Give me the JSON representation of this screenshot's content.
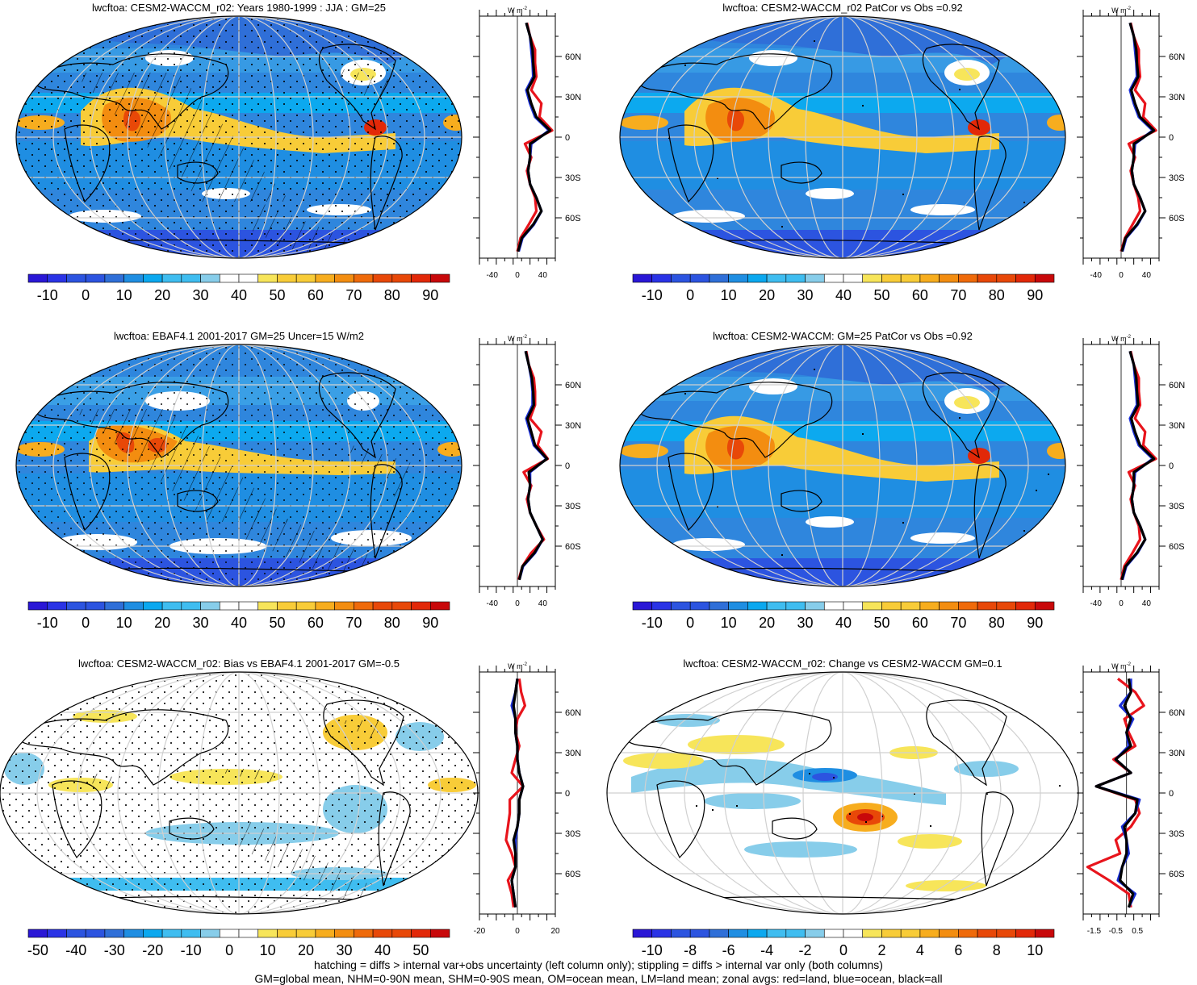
{
  "footer": {
    "line1": "hatching = diffs > internal var+obs uncertainty (left column only); stippling = diffs > internal var only (both columns)",
    "line2": "GM=global mean, NHM=0-90N mean, SHM=0-90S mean, OM=ocean mean, LM=land mean; zonal avgs: red=land, blue=ocean, black=all"
  },
  "colors": {
    "land": "#e8141c",
    "ocean": "#1a2fd6",
    "all": "#000000",
    "levels_abs": [
      "#2a17d6",
      "#2a33e6",
      "#2c54e0",
      "#2f6fd8",
      "#1f8ee2",
      "#0ba8ef",
      "#3fbdf0",
      "#87cdea",
      "#ffffff",
      "#ffffff",
      "#f7e55a",
      "#f8cc38",
      "#f7ad1e",
      "#f38d10",
      "#ef6a0a",
      "#e84808",
      "#e22808",
      "#c8080a"
    ],
    "levels_diff": [
      "#2a17d6",
      "#2a33e6",
      "#2c54e0",
      "#2f6fd8",
      "#1f8ee2",
      "#0ba8ef",
      "#3fbdf0",
      "#87cdea",
      "#ffffff",
      "#ffffff",
      "#f7e55a",
      "#f8cc38",
      "#f7ad1e",
      "#f38d10",
      "#ef6a0a",
      "#e84808",
      "#e22808",
      "#c8080a"
    ]
  },
  "panels": [
    {
      "id": "model_r02",
      "title": "lwcftoa: CESM2-WACCM_r02: Years 1980-1999 : JJA : GM=25",
      "colorbar_labels": [
        "-10",
        "0",
        "10",
        "20",
        "30",
        "40",
        "50",
        "60",
        "70",
        "80",
        "90"
      ],
      "colorbar_label_positions": [
        1,
        3,
        5,
        7,
        9,
        11,
        13,
        15,
        17,
        19,
        21
      ],
      "zonal_unit": "W m",
      "zonal_unit_sup": "-2",
      "zonal_xticks": [
        "-40",
        "0",
        "40"
      ],
      "zonal_yticks": [
        "60N",
        "30N",
        "0",
        "30S",
        "60S"
      ]
    },
    {
      "id": "model_r02_patcor",
      "title": "lwcftoa: CESM2-WACCM_r02 PatCor vs Obs =0.92",
      "colorbar_labels": [
        "-10",
        "0",
        "10",
        "20",
        "30",
        "40",
        "50",
        "60",
        "70",
        "80",
        "90"
      ],
      "colorbar_label_positions": [
        1,
        3,
        5,
        7,
        9,
        11,
        13,
        15,
        17,
        19,
        21
      ],
      "zonal_unit": "W m",
      "zonal_unit_sup": "-2",
      "zonal_xticks": [
        "-40",
        "0",
        "40"
      ],
      "zonal_yticks": [
        "60N",
        "30N",
        "0",
        "30S",
        "60S"
      ]
    },
    {
      "id": "obs_ebaf",
      "title": "lwcftoa: EBAF4.1 2001-2017 GM=25 Uncer=15 W/m2",
      "colorbar_labels": [
        "-10",
        "0",
        "10",
        "20",
        "30",
        "40",
        "50",
        "60",
        "70",
        "80",
        "90"
      ],
      "colorbar_label_positions": [
        1,
        3,
        5,
        7,
        9,
        11,
        13,
        15,
        17,
        19,
        21
      ],
      "zonal_unit": "W m",
      "zonal_unit_sup": "-2",
      "zonal_xticks": [
        "-40",
        "0",
        "40"
      ],
      "zonal_yticks": [
        "60N",
        "30N",
        "0",
        "30S",
        "60S"
      ]
    },
    {
      "id": "model_ref",
      "title": "lwcftoa: CESM2-WACCM: GM=25 PatCor vs Obs =0.92",
      "colorbar_labels": [
        "-10",
        "0",
        "10",
        "20",
        "30",
        "40",
        "50",
        "60",
        "70",
        "80",
        "90"
      ],
      "colorbar_label_positions": [
        1,
        3,
        5,
        7,
        9,
        11,
        13,
        15,
        17,
        19,
        21
      ],
      "zonal_unit": "W m",
      "zonal_unit_sup": "-2",
      "zonal_xticks": [
        "-40",
        "0",
        "40"
      ],
      "zonal_yticks": [
        "60N",
        "30N",
        "0",
        "30S",
        "60S"
      ]
    },
    {
      "id": "bias",
      "title": "lwcftoa: CESM2-WACCM_r02: Bias vs EBAF4.1 2001-2017 GM=-0.5",
      "colorbar_labels": [
        "-50",
        "-40",
        "-30",
        "-20",
        "-10",
        "0",
        "10",
        "20",
        "30",
        "40",
        "50"
      ],
      "colorbar_label_positions": [
        0,
        2,
        4,
        6,
        8,
        10,
        12,
        14,
        16,
        18,
        20
      ],
      "zonal_unit": "W m",
      "zonal_unit_sup": "-2",
      "zonal_xticks": [
        "-20",
        "0",
        "20"
      ],
      "zonal_yticks": [
        "60N",
        "30N",
        "0",
        "30S",
        "60S"
      ]
    },
    {
      "id": "change",
      "title": "lwcftoa: CESM2-WACCM_r02: Change vs CESM2-WACCM GM=0.1",
      "colorbar_labels": [
        "-10",
        "-8",
        "-6",
        "-4",
        "-2",
        "0",
        "2",
        "4",
        "6",
        "8",
        "10"
      ],
      "colorbar_label_positions": [
        1,
        3,
        5,
        7,
        9,
        11,
        13,
        15,
        17,
        19,
        21
      ],
      "zonal_unit": "W m",
      "zonal_unit_sup": "-2",
      "zonal_xticks": [
        "-1.5",
        "-0.5",
        "0.5"
      ],
      "zonal_yticks": [
        "60N",
        "30N",
        "0",
        "30S",
        "60S"
      ]
    }
  ],
  "chart_data": [
    {
      "type": "line",
      "panel": "model_r02",
      "x_label": "W m-2",
      "xlim": [
        -60,
        60
      ],
      "ylim": [
        -90,
        90
      ],
      "lat": [
        -85,
        -75,
        -65,
        -55,
        -45,
        -35,
        -25,
        -15,
        -5,
        5,
        15,
        25,
        35,
        45,
        55,
        65,
        75,
        85
      ],
      "series": [
        {
          "name": "land",
          "values": [
            0,
            5,
            18,
            30,
            28,
            20,
            15,
            22,
            12,
            55,
            35,
            38,
            22,
            30,
            28,
            28,
            20,
            15
          ]
        },
        {
          "name": "ocean",
          "values": [
            2,
            8,
            26,
            38,
            30,
            20,
            17,
            20,
            22,
            50,
            28,
            20,
            14,
            25,
            24,
            22,
            20,
            14
          ]
        },
        {
          "name": "all",
          "values": [
            1,
            7,
            25,
            38,
            30,
            20,
            17,
            20,
            20,
            52,
            30,
            22,
            16,
            27,
            25,
            24,
            20,
            14
          ]
        }
      ]
    },
    {
      "type": "line",
      "panel": "model_r02_patcor",
      "x_label": "W m-2",
      "xlim": [
        -60,
        60
      ],
      "ylim": [
        -90,
        90
      ],
      "lat": [
        -85,
        -75,
        -65,
        -55,
        -45,
        -35,
        -25,
        -15,
        -5,
        5,
        15,
        25,
        35,
        45,
        55,
        65,
        75,
        85
      ],
      "series": [
        {
          "name": "land",
          "values": [
            0,
            6,
            18,
            30,
            27,
            20,
            15,
            22,
            12,
            55,
            35,
            38,
            22,
            30,
            28,
            28,
            20,
            15
          ]
        },
        {
          "name": "ocean",
          "values": [
            2,
            8,
            26,
            38,
            30,
            20,
            17,
            20,
            22,
            50,
            28,
            20,
            14,
            25,
            24,
            22,
            20,
            14
          ]
        },
        {
          "name": "all",
          "values": [
            1,
            7,
            25,
            38,
            30,
            20,
            17,
            20,
            20,
            52,
            30,
            22,
            16,
            27,
            25,
            24,
            20,
            14
          ]
        }
      ]
    },
    {
      "type": "line",
      "panel": "obs_ebaf",
      "x_label": "W m-2",
      "xlim": [
        -60,
        60
      ],
      "ylim": [
        -90,
        90
      ],
      "lat": [
        -85,
        -75,
        -65,
        -55,
        -45,
        -35,
        -25,
        -15,
        -5,
        5,
        15,
        25,
        35,
        45,
        55,
        65,
        75,
        85
      ],
      "series": [
        {
          "name": "land",
          "values": [
            2,
            8,
            22,
            42,
            30,
            20,
            15,
            22,
            10,
            48,
            32,
            38,
            20,
            28,
            28,
            26,
            18,
            14
          ]
        },
        {
          "name": "ocean",
          "values": [
            3,
            9,
            28,
            40,
            30,
            20,
            17,
            20,
            20,
            46,
            26,
            20,
            14,
            24,
            24,
            22,
            18,
            13
          ]
        },
        {
          "name": "all",
          "values": [
            3,
            8,
            27,
            40,
            30,
            20,
            17,
            20,
            18,
            47,
            28,
            22,
            16,
            26,
            25,
            23,
            18,
            13
          ]
        }
      ]
    },
    {
      "type": "line",
      "panel": "model_ref",
      "x_label": "W m-2",
      "xlim": [
        -60,
        60
      ],
      "ylim": [
        -90,
        90
      ],
      "lat": [
        -85,
        -75,
        -65,
        -55,
        -45,
        -35,
        -25,
        -15,
        -5,
        5,
        15,
        25,
        35,
        45,
        55,
        65,
        75,
        85
      ],
      "series": [
        {
          "name": "land",
          "values": [
            0,
            5,
            18,
            30,
            28,
            20,
            15,
            22,
            12,
            55,
            35,
            38,
            22,
            30,
            28,
            28,
            20,
            15
          ]
        },
        {
          "name": "ocean",
          "values": [
            2,
            8,
            26,
            38,
            30,
            20,
            17,
            20,
            22,
            50,
            28,
            20,
            14,
            25,
            24,
            22,
            20,
            14
          ]
        },
        {
          "name": "all",
          "values": [
            1,
            7,
            25,
            38,
            30,
            20,
            17,
            20,
            20,
            52,
            30,
            22,
            16,
            27,
            25,
            24,
            20,
            14
          ]
        }
      ]
    },
    {
      "type": "line",
      "panel": "bias",
      "x_label": "W m-2",
      "xlim": [
        -20,
        20
      ],
      "ylim": [
        -90,
        90
      ],
      "lat": [
        -85,
        -75,
        -65,
        -55,
        -45,
        -35,
        -25,
        -15,
        -5,
        5,
        15,
        25,
        35,
        45,
        55,
        65,
        75,
        85
      ],
      "series": [
        {
          "name": "land",
          "values": [
            -2,
            -3,
            -5,
            -1,
            -3,
            -6,
            -5,
            -4,
            -4,
            3,
            -3,
            -1,
            1,
            -1,
            0,
            4,
            2,
            1
          ]
        },
        {
          "name": "ocean",
          "values": [
            -1,
            -2,
            -3,
            -1,
            -1,
            -1,
            0,
            1,
            1,
            3,
            1,
            0,
            0,
            -1,
            -1,
            -3,
            -1,
            0
          ]
        },
        {
          "name": "all",
          "values": [
            -1,
            -2,
            -3,
            -1,
            -1,
            -2,
            0,
            1,
            1,
            3,
            1,
            0,
            0,
            -1,
            -1,
            -2,
            -1,
            0
          ]
        }
      ]
    },
    {
      "type": "line",
      "panel": "change",
      "x_label": "W m-2",
      "xlim": [
        -2,
        1.5
      ],
      "ylim": [
        -90,
        90
      ],
      "lat": [
        -85,
        -75,
        -65,
        -55,
        -45,
        -35,
        -25,
        -15,
        -5,
        5,
        15,
        25,
        35,
        45,
        55,
        65,
        75,
        85
      ],
      "series": [
        {
          "name": "land",
          "values": [
            0.2,
            0.1,
            -0.8,
            -1.8,
            -0.3,
            -0.5,
            0.2,
            0.6,
            0.4,
            -1.4,
            0.2,
            -0.6,
            0.4,
            0.1,
            -0.1,
            0.8,
            0.4,
            -0.4
          ]
        },
        {
          "name": "ocean",
          "values": [
            0.1,
            0.4,
            -0.4,
            -0.2,
            0.1,
            0,
            -0.2,
            0.4,
            0.6,
            -1.4,
            0.2,
            -0.5,
            0.1,
            0.0,
            0.3,
            -0.3,
            0.2,
            0.2
          ]
        },
        {
          "name": "all",
          "values": [
            0.1,
            0.3,
            -0.3,
            -0.2,
            0.0,
            0,
            -0.1,
            0.4,
            0.5,
            -1.4,
            0.2,
            -0.5,
            0.2,
            0.0,
            0.2,
            -0.1,
            0.2,
            0.1
          ]
        }
      ]
    }
  ]
}
